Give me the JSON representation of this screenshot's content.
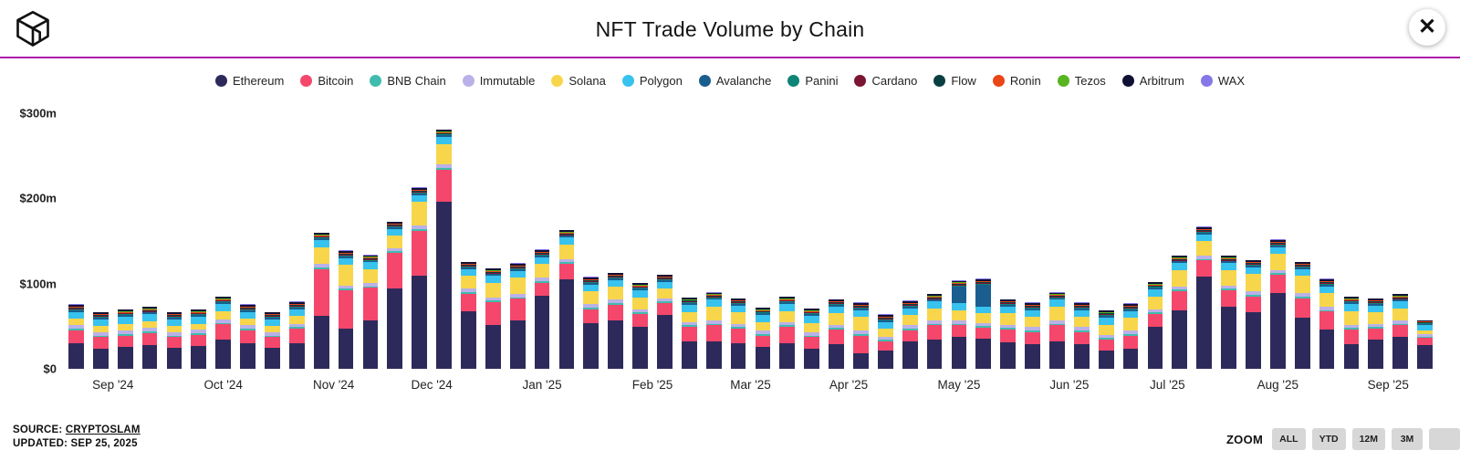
{
  "header": {
    "title": "NFT Trade Volume by Chain",
    "close_glyph": "✕"
  },
  "footer": {
    "source_label": "SOURCE:",
    "source_link": "CRYPTOSLAM",
    "updated": "UPDATED: SEP 25, 2025"
  },
  "zoom": {
    "label": "ZOOM",
    "buttons": [
      "ALL",
      "YTD",
      "12M",
      "3M",
      ""
    ]
  },
  "colors": {
    "divider": "#AD18AE"
  },
  "chart_data": {
    "type": "bar",
    "stacked": true,
    "title": "NFT Trade Volume by Chain",
    "unit": "$m (USD millions, weekly NFT trade volume)",
    "ylim": [
      0,
      300
    ],
    "grid": false,
    "legend_position": "top",
    "yticks": [
      {
        "value": 0,
        "label": "$0"
      },
      {
        "value": 100,
        "label": "$100m"
      },
      {
        "value": 200,
        "label": "$200m"
      },
      {
        "value": 300,
        "label": "$300m"
      }
    ],
    "series_names": [
      "Ethereum",
      "Bitcoin",
      "BNB Chain",
      "Immutable",
      "Solana",
      "Polygon",
      "Avalanche",
      "Panini",
      "Cardano",
      "Flow",
      "Ronin",
      "Tezos",
      "Arbitrum",
      "WAX"
    ],
    "series_colors": [
      "#2D2A5B",
      "#F4476B",
      "#3FBCAE",
      "#B9B1E8",
      "#F8D64C",
      "#38C2EE",
      "#1A5D8F",
      "#0E8576",
      "#7A1533",
      "#0A3F42",
      "#EA4517",
      "#57B520",
      "#101035",
      "#8677E6"
    ],
    "x_months": [
      {
        "label": "Sep '24",
        "center": 1.5
      },
      {
        "label": "Oct '24",
        "center": 6
      },
      {
        "label": "Nov '24",
        "center": 10.5
      },
      {
        "label": "Dec '24",
        "center": 14.5
      },
      {
        "label": "Jan '25",
        "center": 19
      },
      {
        "label": "Feb '25",
        "center": 23.5
      },
      {
        "label": "Mar '25",
        "center": 27.5
      },
      {
        "label": "Apr '25",
        "center": 31.5
      },
      {
        "label": "May '25",
        "center": 36
      },
      {
        "label": "Jun '25",
        "center": 40.5
      },
      {
        "label": "Jul '25",
        "center": 44.5
      },
      {
        "label": "Aug '25",
        "center": 49
      },
      {
        "label": "Sep '25",
        "center": 53.5
      }
    ],
    "bars_note": "Each bar = one week; values per series in series_names order, $ millions (estimated from pixels)",
    "bars": [
      [
        30,
        15,
        2,
        4,
        8,
        8,
        2,
        1,
        1,
        1,
        1,
        0.5,
        2,
        0.5
      ],
      [
        24,
        13,
        2,
        4,
        7,
        8,
        2,
        1,
        1,
        1,
        1,
        0.5,
        2,
        0.5
      ],
      [
        26,
        13,
        2,
        4,
        8,
        8,
        2,
        1,
        1,
        1,
        1,
        0.5,
        2,
        0.5
      ],
      [
        28,
        14,
        2,
        4,
        8,
        8,
        2,
        1,
        1,
        1,
        1,
        0.5,
        2,
        0.5
      ],
      [
        25,
        12,
        2,
        4,
        7,
        8,
        2,
        1,
        1,
        1,
        1,
        0.5,
        2,
        0.5
      ],
      [
        27,
        13,
        2,
        4,
        7,
        8,
        2,
        1,
        1,
        1,
        1,
        0.5,
        2,
        0.5
      ],
      [
        34,
        18,
        2,
        4,
        10,
        8,
        2,
        1,
        1,
        1,
        1,
        0.5,
        2,
        0.5
      ],
      [
        30,
        15,
        2,
        4,
        8,
        8,
        2,
        1,
        1,
        1,
        1,
        0.5,
        2,
        0.5
      ],
      [
        25,
        12,
        2,
        4,
        7,
        8,
        2,
        1,
        1,
        1,
        1,
        0.5,
        2,
        0.5
      ],
      [
        30,
        17,
        2,
        4,
        9,
        8,
        2,
        1,
        1,
        1,
        1,
        0.5,
        2,
        0.5
      ],
      [
        62,
        55,
        2,
        4,
        20,
        8,
        2,
        1,
        1,
        1,
        1,
        0.5,
        2,
        0.5
      ],
      [
        47,
        45,
        2,
        4,
        24,
        8,
        2,
        1,
        1,
        1,
        1,
        0.5,
        2,
        0.5
      ],
      [
        57,
        38,
        2,
        4,
        16,
        8,
        2,
        1,
        1,
        1,
        1,
        0.5,
        2,
        0.5
      ],
      [
        94,
        42,
        2,
        4,
        14,
        8,
        2,
        1,
        1,
        1,
        1,
        0.5,
        2,
        0.5
      ],
      [
        109,
        53,
        2,
        4,
        28,
        8,
        2,
        1,
        1,
        1,
        1,
        0.5,
        2,
        0.5
      ],
      [
        196,
        38,
        2,
        4,
        24,
        8,
        2,
        1,
        1,
        1,
        1,
        0.5,
        2,
        0.5
      ],
      [
        67,
        21,
        2,
        4,
        15,
        8,
        2,
        1,
        1,
        1,
        1,
        0.5,
        2,
        0.5
      ],
      [
        51,
        27,
        2,
        4,
        17,
        8,
        2,
        1,
        1,
        1,
        1,
        0.5,
        2,
        0.5
      ],
      [
        57,
        25,
        2,
        4,
        19,
        8,
        2,
        1,
        1,
        1,
        1,
        0.5,
        2,
        0.5
      ],
      [
        86,
        15,
        2,
        4,
        16,
        8,
        2,
        1,
        1,
        1,
        1,
        0.5,
        2,
        0.5
      ],
      [
        105,
        18,
        2,
        4,
        17,
        8,
        2,
        1,
        1,
        1,
        1,
        0.5,
        2,
        0.5
      ],
      [
        54,
        16,
        2,
        4,
        15,
        8,
        2,
        1,
        1,
        1,
        1,
        0.5,
        2,
        0.5
      ],
      [
        57,
        18,
        2,
        4,
        15,
        8,
        2,
        1,
        1,
        1,
        1,
        0.5,
        2,
        0.5
      ],
      [
        49,
        15,
        2,
        4,
        14,
        8,
        2,
        1,
        1,
        1,
        1,
        0.5,
        2,
        0.5
      ],
      [
        63,
        14,
        2,
        4,
        11,
        8,
        2,
        1,
        1,
        1,
        1,
        0.5,
        2,
        0.5
      ],
      [
        32,
        17,
        2,
        4,
        12,
        8,
        2,
        1,
        1,
        1,
        1,
        0.5,
        2,
        0.5
      ],
      [
        32,
        19,
        2,
        4,
        16,
        8,
        2,
        1,
        1,
        1,
        1,
        0.5,
        2,
        0.5
      ],
      [
        30,
        17,
        2,
        4,
        13,
        8,
        2,
        1,
        1,
        1,
        1,
        0.5,
        2,
        0.5
      ],
      [
        26,
        13,
        2,
        4,
        10,
        8,
        2,
        1,
        1,
        1,
        1,
        0.5,
        2,
        0.5
      ],
      [
        30,
        19,
        2,
        4,
        13,
        8,
        2,
        1,
        1,
        1,
        1,
        0.5,
        2,
        0.5
      ],
      [
        24,
        13,
        2,
        4,
        11,
        8,
        2,
        1,
        1,
        1,
        1,
        0.5,
        2,
        0.5
      ],
      [
        29,
        17,
        2,
        4,
        13,
        8,
        2,
        1,
        1,
        1,
        1,
        0.5,
        2,
        0.5
      ],
      [
        18,
        21,
        2,
        4,
        16,
        8,
        2,
        1,
        1,
        1,
        1,
        0.5,
        2,
        0.5
      ],
      [
        21,
        11,
        2,
        4,
        9,
        8,
        2,
        1,
        1,
        1,
        1,
        0.5,
        2,
        0.5
      ],
      [
        32,
        13,
        2,
        4,
        12,
        8,
        2,
        1,
        1,
        1,
        1,
        0.5,
        2,
        0.5
      ],
      [
        34,
        17,
        2,
        4,
        14,
        8,
        2,
        1,
        1,
        1,
        1,
        0.5,
        2,
        0.5
      ],
      [
        37,
        14,
        2,
        4,
        12,
        8,
        20,
        1,
        1,
        1,
        1,
        0.5,
        2,
        0.5
      ],
      [
        35,
        13,
        2,
        4,
        11,
        8,
        26,
        1,
        1,
        1,
        1,
        0.5,
        2,
        0.5
      ],
      [
        31,
        15,
        2,
        4,
        13,
        8,
        2,
        1,
        1,
        1,
        1,
        0.5,
        2,
        0.5
      ],
      [
        29,
        14,
        2,
        4,
        12,
        8,
        2,
        1,
        1,
        1,
        1,
        0.5,
        2,
        0.5
      ],
      [
        32,
        19,
        2,
        4,
        16,
        8,
        2,
        1,
        1,
        1,
        1,
        0.5,
        2,
        0.5
      ],
      [
        29,
        14,
        2,
        4,
        12,
        8,
        2,
        1,
        1,
        1,
        1,
        0.5,
        2,
        0.5
      ],
      [
        21,
        13,
        2,
        4,
        12,
        8,
        2,
        1,
        1,
        1,
        1,
        0.5,
        2,
        0.5
      ],
      [
        24,
        15,
        2,
        4,
        15,
        8,
        2,
        1,
        1,
        1,
        1,
        0.5,
        2,
        0.5
      ],
      [
        49,
        15,
        2,
        4,
        15,
        8,
        2,
        1,
        1,
        1,
        1,
        0.5,
        2,
        0.5
      ],
      [
        69,
        22,
        2,
        4,
        19,
        8,
        2,
        1,
        1,
        1,
        1,
        0.5,
        2,
        0.5
      ],
      [
        108,
        19,
        2,
        4,
        17,
        8,
        2,
        1,
        1,
        1,
        1,
        0.5,
        2,
        0.5
      ],
      [
        73,
        19,
        2,
        4,
        18,
        8,
        2,
        1,
        1,
        1,
        1,
        0.5,
        2,
        0.5
      ],
      [
        66,
        19,
        2,
        4,
        20,
        8,
        2,
        1,
        1,
        1,
        1,
        0.5,
        2,
        0.5
      ],
      [
        89,
        21,
        2,
        4,
        19,
        8,
        2,
        1,
        1,
        1,
        1,
        0.5,
        2,
        0.5
      ],
      [
        60,
        23,
        2,
        4,
        20,
        8,
        2,
        1,
        1,
        1,
        1,
        0.5,
        2,
        0.5
      ],
      [
        46,
        21,
        2,
        4,
        16,
        8,
        2,
        1,
        1,
        1,
        1,
        0.5,
        2,
        0.5
      ],
      [
        29,
        17,
        2,
        4,
        16,
        8,
        2,
        1,
        1,
        1,
        1,
        0.5,
        2,
        0.5
      ],
      [
        34,
        13,
        2,
        4,
        13,
        8,
        2,
        1,
        1,
        1,
        1,
        0.5,
        2,
        0.5
      ],
      [
        37,
        14,
        2,
        4,
        14,
        8,
        2,
        1,
        1,
        1,
        1,
        0.5,
        2,
        0.5
      ],
      [
        28,
        8,
        1.5,
        3,
        5,
        6,
        1,
        1,
        0.5,
        0.5,
        1,
        0.3,
        1,
        0.2
      ]
    ]
  }
}
